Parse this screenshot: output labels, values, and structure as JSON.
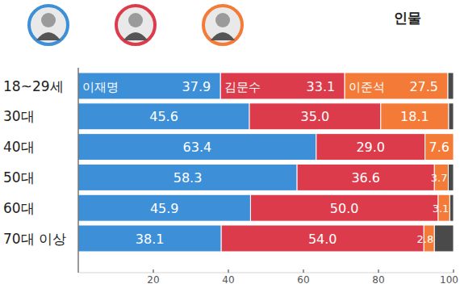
{
  "chart_data": {
    "type": "bar",
    "title": "인물",
    "orientation": "horizontal",
    "stacked": true,
    "data_labels": true,
    "categories": [
      "18~29세",
      "30대",
      "40대",
      "50대",
      "60대",
      "70대 이상"
    ],
    "series": [
      {
        "name": "이재명",
        "color": "#3d8fd8",
        "values": [
          37.9,
          45.6,
          63.4,
          58.3,
          45.9,
          38.1
        ]
      },
      {
        "name": "김문수",
        "color": "#dc3b4b",
        "values": [
          33.1,
          35.0,
          29.0,
          36.6,
          50.0,
          54.0
        ],
        "value_labels": [
          "33.1",
          "35.0",
          "29.0",
          "36.6",
          "50.0",
          "54.0"
        ]
      },
      {
        "name": "이준석",
        "color": "#f37b37",
        "values": [
          27.5,
          18.1,
          7.6,
          3.7,
          3.1,
          2.8
        ]
      },
      {
        "color": "#4a4a4a",
        "values": [
          1.5,
          1.3,
          0,
          1.4,
          1.0,
          5.1
        ],
        "data_labels": false
      }
    ],
    "xlim": [
      0,
      100
    ],
    "xticks": [
      20,
      40,
      60,
      80,
      100
    ]
  }
}
